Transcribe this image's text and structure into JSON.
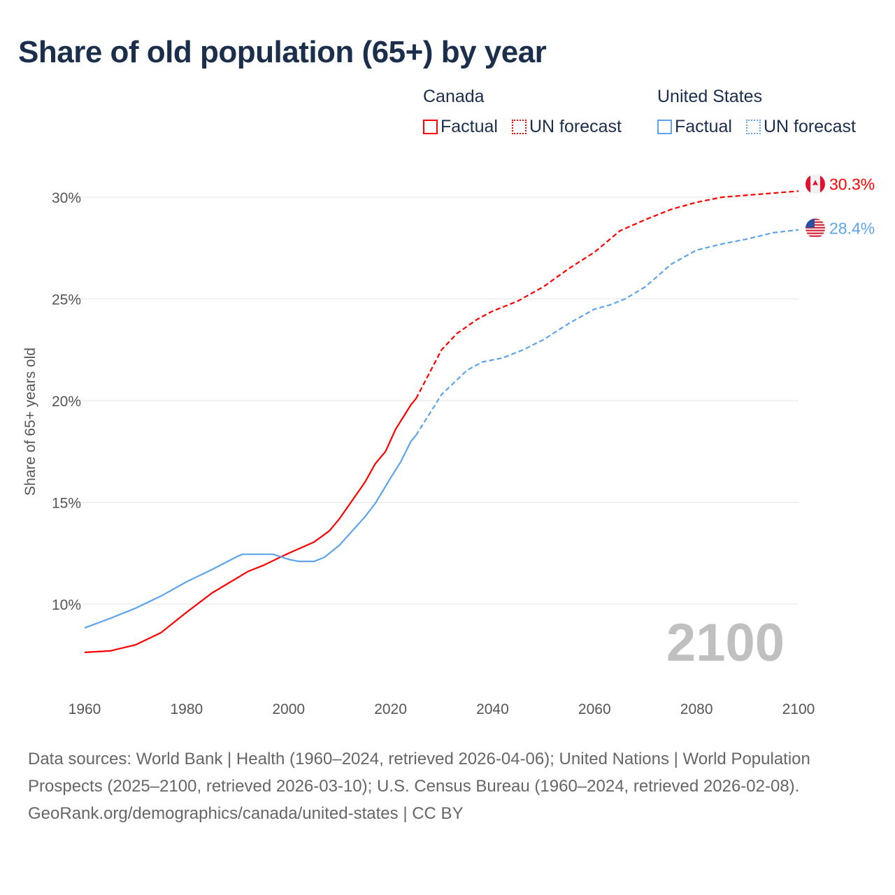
{
  "chart_data": {
    "type": "line",
    "title": "Share of old population (65+) by year",
    "ylabel": "Share of 65+ years old",
    "xlabel": "",
    "xlim": [
      1960,
      2100
    ],
    "ylim": [
      6.5,
      31.5
    ],
    "x_ticks": [
      "1960",
      "1980",
      "2000",
      "2020",
      "2040",
      "2060",
      "2080",
      "2100"
    ],
    "y_ticks": [
      {
        "v": 10,
        "label": "10%"
      },
      {
        "v": 15,
        "label": "15%"
      },
      {
        "v": 20,
        "label": "20%"
      },
      {
        "v": 25,
        "label": "25%"
      },
      {
        "v": 30,
        "label": "30%"
      }
    ],
    "grid": true,
    "year_watermark": "2100",
    "legend": {
      "placement": "top-right",
      "groups": [
        {
          "country": "Canada",
          "factual": "Factual",
          "forecast": "UN forecast",
          "color": "#ff0000"
        },
        {
          "country": "United States",
          "factual": "Factual",
          "forecast": "UN forecast",
          "color": "#5ea4ec"
        }
      ]
    },
    "series": [
      {
        "name": "Canada - Factual",
        "color": "#ff0000",
        "dash": false,
        "x": [
          1960,
          1965,
          1970,
          1975,
          1980,
          1985,
          1990,
          1992,
          1995,
          2000,
          2005,
          2008,
          2010,
          2015,
          2017,
          2019,
          2021,
          2023,
          2024,
          2025
        ],
        "y": [
          7.63,
          7.7,
          8.0,
          8.6,
          9.6,
          10.55,
          11.3,
          11.6,
          11.9,
          12.5,
          13.05,
          13.6,
          14.2,
          16.0,
          16.9,
          17.5,
          18.6,
          19.4,
          19.8,
          20.1
        ]
      },
      {
        "name": "Canada - UN forecast",
        "color": "#ff0000",
        "dash": true,
        "x": [
          2025,
          2030,
          2033,
          2037,
          2040,
          2045,
          2050,
          2055,
          2060,
          2065,
          2070,
          2075,
          2080,
          2085,
          2090,
          2095,
          2100
        ],
        "y": [
          20.1,
          22.5,
          23.3,
          24.0,
          24.4,
          24.9,
          25.6,
          26.5,
          27.3,
          28.35,
          28.9,
          29.4,
          29.75,
          30.0,
          30.1,
          30.2,
          30.3
        ]
      },
      {
        "name": "United States - Factual",
        "color": "#5ea4ec",
        "dash": false,
        "x": [
          1960,
          1965,
          1970,
          1975,
          1980,
          1985,
          1990,
          1991,
          1997,
          2000,
          2002,
          2005,
          2007,
          2010,
          2015,
          2017,
          2020,
          2022,
          2024,
          2025
        ],
        "y": [
          8.83,
          9.3,
          9.8,
          10.4,
          11.1,
          11.7,
          12.35,
          12.45,
          12.45,
          12.2,
          12.1,
          12.1,
          12.3,
          12.9,
          14.3,
          14.95,
          16.2,
          17.0,
          18.0,
          18.3
        ]
      },
      {
        "name": "United States - UN forecast",
        "color": "#5ea4ec",
        "dash": true,
        "x": [
          2025,
          2030,
          2035,
          2038,
          2042,
          2046,
          2050,
          2055,
          2060,
          2063,
          2066,
          2070,
          2075,
          2080,
          2085,
          2090,
          2095,
          2100
        ],
        "y": [
          18.3,
          20.3,
          21.5,
          21.9,
          22.1,
          22.5,
          23.0,
          23.8,
          24.5,
          24.7,
          25.0,
          25.6,
          26.7,
          27.4,
          27.7,
          27.95,
          28.25,
          28.4
        ]
      }
    ],
    "end_labels": [
      {
        "country": "Canada",
        "flag": "canada-flag-icon",
        "label": "30.3%",
        "value": 30.3,
        "color": "#ff0000"
      },
      {
        "country": "United States",
        "flag": "us-flag-icon",
        "label": "28.4%",
        "value": 28.4,
        "color": "#5ea4ec"
      }
    ]
  },
  "footer": {
    "sources": "Data sources: World Bank | Health (1960–2024, retrieved 2026-04-06); United Nations | World Population Prospects (2025–2100, retrieved 2026-03-10); U.S. Census Bureau (1960–2024, retrieved 2026-02-08).",
    "credit": "GeoRank.org/demographics/canada/united-states | CC BY"
  }
}
